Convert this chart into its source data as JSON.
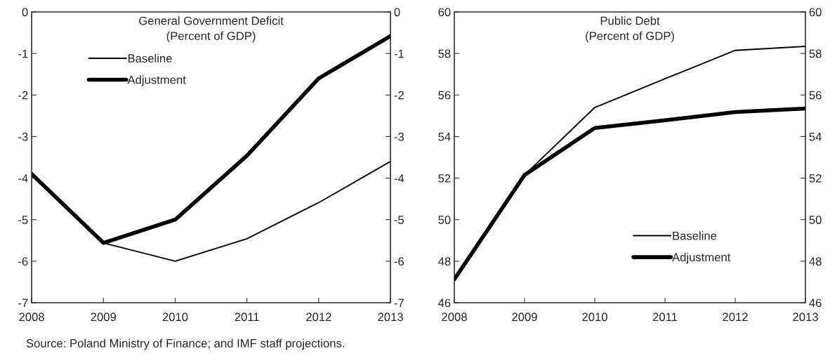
{
  "chart_data": [
    {
      "type": "line",
      "title": "General Government Deficit\n(Percent of GDP)",
      "x": [
        2008,
        2009,
        2010,
        2011,
        2012,
        2013
      ],
      "series": [
        {
          "name": "Baseline",
          "color": "#000000",
          "values": [
            -3.9,
            -5.56,
            -6.0,
            -5.46,
            -4.59,
            -3.6
          ]
        },
        {
          "name": "Adjustment",
          "color": "#000000",
          "values": [
            -3.9,
            -5.56,
            -5.0,
            -3.46,
            -1.6,
            -0.58
          ]
        }
      ],
      "xlim": [
        2008,
        2013
      ],
      "xticks": [
        2008,
        2009,
        2010,
        2011,
        2012,
        2013
      ],
      "ylim": [
        -7,
        0
      ],
      "yticks": [
        -7,
        -6,
        -5,
        -4,
        -3,
        -2,
        -1,
        0
      ],
      "y2lim": [
        -7,
        0
      ],
      "y2ticks": [
        -7,
        -6,
        -5,
        -4,
        -3,
        -2,
        -1,
        0
      ],
      "legend": "top left",
      "grid": false,
      "marker": "none",
      "line_style": "solid",
      "annotations": [
        "Source: Poland Ministry of Finance; and IMF staff projections."
      ]
    },
    {
      "type": "line",
      "title": "Public Debt\n(Percent of GDP)",
      "x": [
        2008,
        2009,
        2010,
        2011,
        2012,
        2013
      ],
      "series": [
        {
          "name": "Baseline",
          "color": "#000000",
          "values": [
            47.13,
            52.15,
            55.4,
            56.78,
            58.15,
            58.34
          ]
        },
        {
          "name": "Adjustment",
          "color": "#000000",
          "values": [
            47.13,
            52.15,
            54.41,
            54.78,
            55.18,
            55.35
          ]
        }
      ],
      "xlim": [
        2008,
        2013
      ],
      "xticks": [
        2008,
        2009,
        2010,
        2011,
        2012,
        2013
      ],
      "ylim": [
        46,
        60
      ],
      "yticks": [
        46,
        48,
        50,
        52,
        54,
        56,
        58,
        60
      ],
      "y2lim": [
        46,
        60
      ],
      "y2ticks": [
        46,
        48,
        50,
        52,
        54,
        56,
        58,
        60
      ],
      "legend": "bottom right",
      "grid": false,
      "marker": "none",
      "line_style": "solid"
    }
  ]
}
